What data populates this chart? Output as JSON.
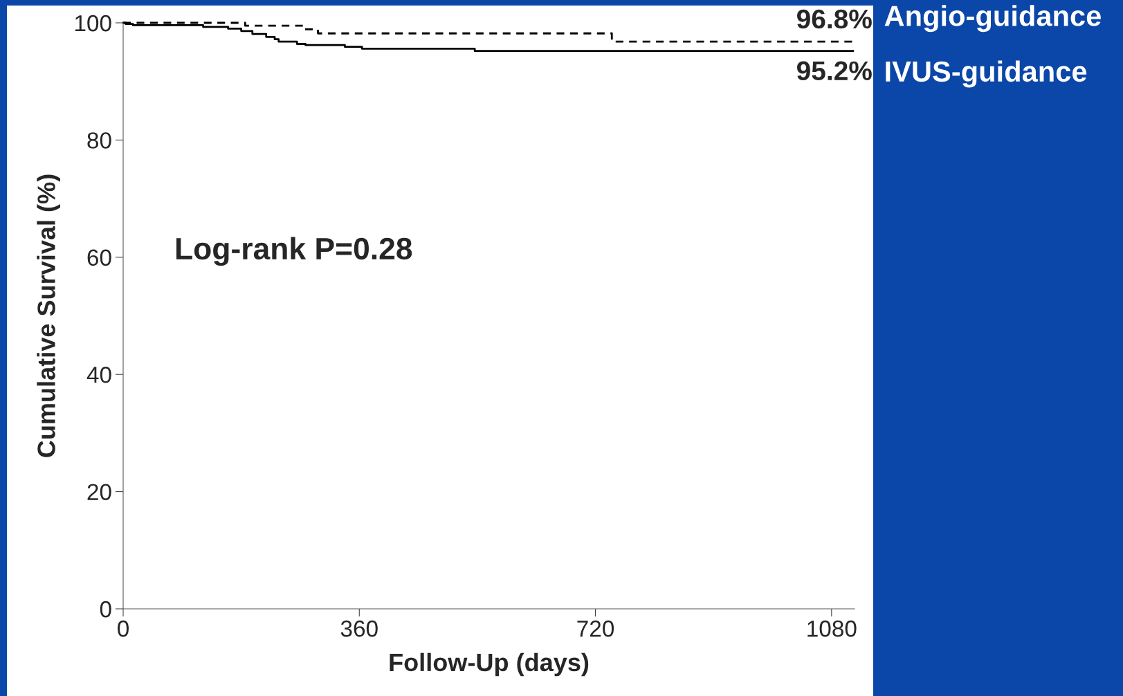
{
  "chart_data": {
    "type": "step",
    "xlabel": "Follow-Up (days)",
    "ylabel": "Cumulative Survival (%)",
    "xlim": [
      0,
      1115
    ],
    "xticks": [
      0,
      360,
      720,
      1080
    ],
    "ylim": [
      0,
      100
    ],
    "yticks": [
      0,
      20,
      40,
      60,
      80,
      100
    ],
    "grid": false,
    "legend": false,
    "series": [
      {
        "name": "Angio-guidance",
        "color": "#000000",
        "line_style": "dashed",
        "x": [
          0,
          186,
          275,
          297,
          745,
          1113
        ],
        "values": [
          100,
          99.5,
          98.9,
          98.2,
          96.8,
          96.8
        ]
      },
      {
        "name": "IVUS-guidance",
        "color": "#000000",
        "line_style": "solid",
        "x": [
          0,
          4,
          15,
          122,
          160,
          180,
          197,
          218,
          231,
          237,
          265,
          278,
          338,
          364,
          536,
          1113
        ],
        "values": [
          100,
          99.8,
          99.6,
          99.3,
          99.0,
          98.6,
          98.1,
          97.6,
          97.2,
          96.8,
          96.4,
          96.2,
          95.9,
          95.6,
          95.2,
          95.2
        ]
      }
    ],
    "annotations": [
      {
        "text": "96.8%",
        "x": 1113,
        "y": 96.8
      },
      {
        "text": "95.2%",
        "x": 1113,
        "y": 95.2
      },
      "Log-rank P=0.28"
    ]
  }
}
